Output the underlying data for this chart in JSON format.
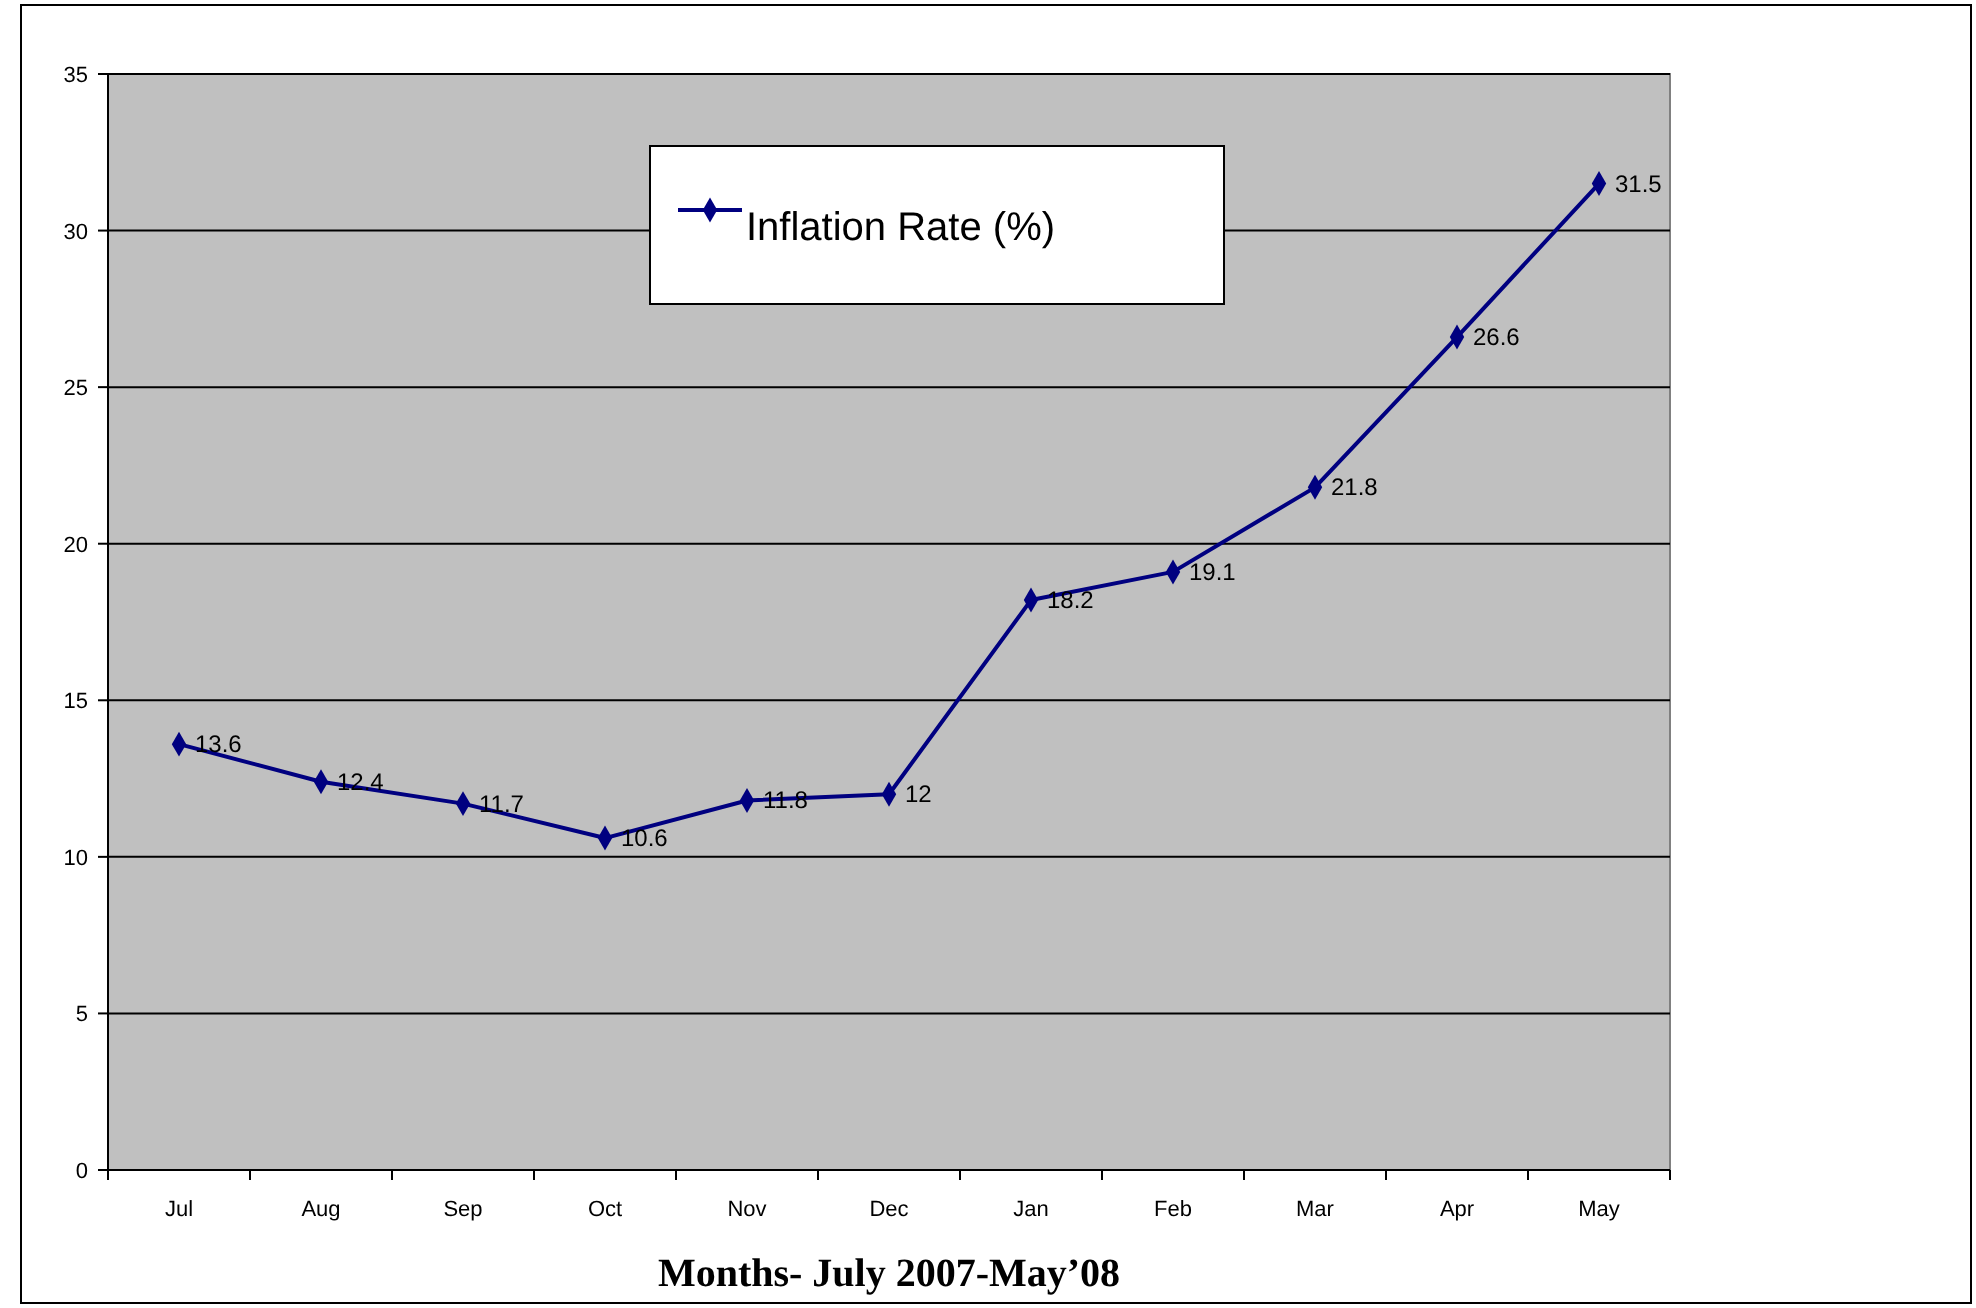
{
  "chart_data": {
    "type": "line",
    "xlabel": "Months- July 2007-May’08",
    "categories": [
      "Jul",
      "Aug",
      "Sep",
      "Oct",
      "Nov",
      "Dec",
      "Jan",
      "Feb",
      "Mar",
      "Apr",
      "May"
    ],
    "series": [
      {
        "name": "Inflation Rate (%)",
        "color": "#000080",
        "values": [
          13.6,
          12.4,
          11.7,
          10.6,
          11.8,
          12,
          18.2,
          19.1,
          21.8,
          26.6,
          31.5
        ]
      }
    ],
    "ylim": [
      0,
      35
    ],
    "yticks": [
      0,
      5,
      10,
      15,
      20,
      25,
      30,
      35
    ],
    "grid": "y",
    "legend": "top",
    "marker": "diamond",
    "line_style": "solid",
    "data_labels": true
  }
}
